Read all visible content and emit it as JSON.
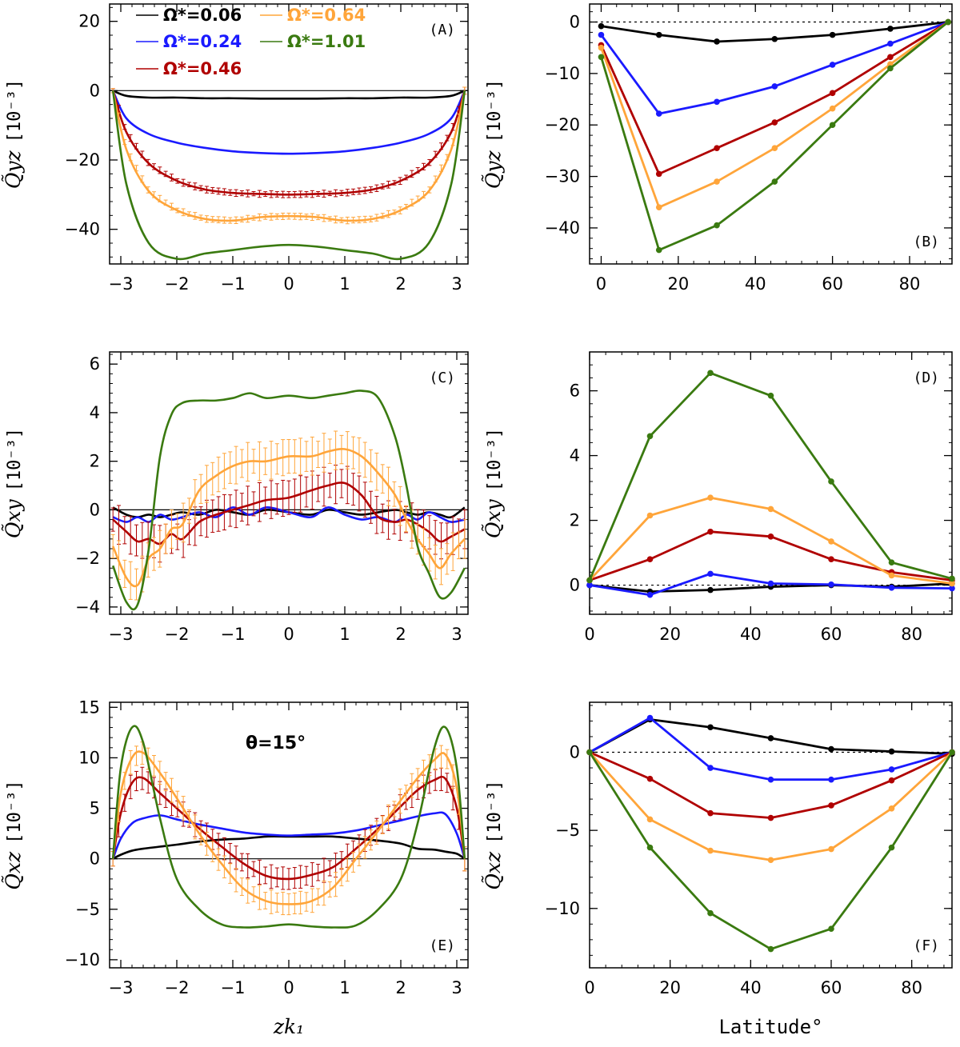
{
  "figure": {
    "legend": [
      {
        "name": "Ω*=0.06",
        "color": "#000000"
      },
      {
        "name": "Ω*=0.24",
        "color": "#1a1aff"
      },
      {
        "name": "Ω*=0.46",
        "color": "#b00000"
      },
      {
        "name": "Ω*=0.64",
        "color": "#ffa53a"
      },
      {
        "name": "Ω*=1.01",
        "color": "#3a7a10"
      }
    ],
    "ytitle_unit": "[10⁻³]",
    "annotation_theta": "θ=15°"
  },
  "chart_data": [
    {
      "panel": "A",
      "label": "(A)",
      "type": "line",
      "ylabel": "Q̃yz",
      "xlabel": "",
      "xlim": [
        -3.2,
        3.2
      ],
      "ylim": [
        -50,
        25
      ],
      "xticks": [
        -3,
        -2,
        -1,
        0,
        1,
        2,
        3
      ],
      "yticks": [
        -40,
        -20,
        0,
        20
      ],
      "zero_line": "solid",
      "x": [
        -3.14,
        -2.9,
        -2.5,
        -2.0,
        -1.5,
        -1.0,
        -0.5,
        0.0,
        0.5,
        1.0,
        1.5,
        2.0,
        2.5,
        2.9,
        3.14
      ],
      "series": [
        {
          "name": "Ω*=0.06",
          "values": [
            0,
            -1.5,
            -2,
            -2,
            -2.2,
            -2.2,
            -2.3,
            -2.3,
            -2.3,
            -2.2,
            -2.2,
            -2,
            -2,
            -1.5,
            0
          ]
        },
        {
          "name": "Ω*=0.24",
          "values": [
            0,
            -8,
            -12.5,
            -15,
            -16.5,
            -17.5,
            -18,
            -18.2,
            -18,
            -17.5,
            -16.5,
            -15,
            -12.5,
            -8,
            0
          ]
        },
        {
          "name": "Ω*=0.46",
          "values": [
            0,
            -12,
            -21,
            -26,
            -28.5,
            -29.5,
            -29.8,
            -30,
            -29.8,
            -29.5,
            -28.5,
            -26,
            -21,
            -12,
            0
          ]
        },
        {
          "name": "Ω*=0.64",
          "values": [
            0,
            -17,
            -29,
            -34.5,
            -37,
            -37.5,
            -36.5,
            -36.2,
            -36.5,
            -37.5,
            -37,
            -34.5,
            -29,
            -17,
            0
          ]
        },
        {
          "name": "Ω*=1.01",
          "values": [
            0,
            -27,
            -44,
            -48.5,
            -47,
            -46,
            -45,
            -44.5,
            -45,
            -46,
            -47,
            -48.5,
            -44,
            -27,
            0
          ]
        }
      ]
    },
    {
      "panel": "B",
      "label": "(B)",
      "type": "line",
      "ylabel": "Q̃yz",
      "xlabel": "",
      "xlim": [
        -3,
        91
      ],
      "ylim": [
        -47,
        3.5
      ],
      "xticks": [
        0,
        20,
        40,
        60,
        80
      ],
      "yticks": [
        -40,
        -30,
        -20,
        -10,
        0
      ],
      "zero_line": "dotted",
      "x": [
        0,
        15,
        30,
        45,
        60,
        75,
        90
      ],
      "series": [
        {
          "name": "Ω*=0.06",
          "values": [
            -0.8,
            -2.5,
            -3.8,
            -3.3,
            -2.5,
            -1.3,
            0
          ]
        },
        {
          "name": "Ω*=0.24",
          "values": [
            -2.5,
            -17.8,
            -15.5,
            -12.5,
            -8.3,
            -4.2,
            0
          ]
        },
        {
          "name": "Ω*=0.46",
          "values": [
            -4.5,
            -29.5,
            -24.5,
            -19.5,
            -13.8,
            -6.8,
            0
          ]
        },
        {
          "name": "Ω*=0.64",
          "values": [
            -5,
            -36,
            -31,
            -24.5,
            -16.8,
            -8.2,
            0
          ]
        },
        {
          "name": "Ω*=1.01",
          "values": [
            -6.8,
            -44.3,
            -39.5,
            -31,
            -20,
            -9,
            0
          ]
        }
      ]
    },
    {
      "panel": "C",
      "label": "(C)",
      "type": "line",
      "ylabel": "Q̃xy",
      "xlabel": "",
      "xlim": [
        -3.2,
        3.2
      ],
      "ylim": [
        -4.3,
        6.5
      ],
      "xticks": [
        -3,
        -2,
        -1,
        0,
        1,
        2,
        3
      ],
      "yticks": [
        -4,
        -2,
        0,
        2,
        4,
        6
      ],
      "zero_line": "solid",
      "x": [
        -3.14,
        -2.9,
        -2.7,
        -2.5,
        -2.3,
        -2.1,
        -1.9,
        -1.6,
        -1.3,
        -1.0,
        -0.7,
        -0.4,
        0.0,
        0.4,
        0.7,
        1.0,
        1.3,
        1.6,
        1.9,
        2.1,
        2.3,
        2.5,
        2.7,
        2.9,
        3.14
      ],
      "series": [
        {
          "name": "Ω*=0.06",
          "values": [
            0.1,
            -0.2,
            -0.3,
            -0.2,
            -0.3,
            -0.2,
            -0.1,
            -0.2,
            0.0,
            -0.1,
            -0.2,
            0.0,
            -0.1,
            -0.2,
            0.0,
            -0.1,
            -0.2,
            -0.1,
            0.0,
            -0.1,
            -0.2,
            -0.1,
            -0.2,
            -0.3,
            0.1
          ]
        },
        {
          "name": "Ω*=0.24",
          "values": [
            -0.3,
            -0.5,
            -0.3,
            -0.5,
            -0.2,
            -0.4,
            -0.3,
            -0.1,
            -0.3,
            0.1,
            -0.2,
            0.1,
            -0.1,
            -0.3,
            0.1,
            -0.2,
            -0.4,
            -0.3,
            -0.5,
            -0.2,
            -0.4,
            -0.1,
            -0.3,
            -0.5,
            -0.4
          ]
        },
        {
          "name": "Ω*=0.46",
          "values": [
            -0.4,
            -0.9,
            -1.3,
            -1.2,
            -1.4,
            -1.0,
            -1.2,
            -0.5,
            -0.2,
            0.0,
            0.2,
            0.4,
            0.5,
            0.8,
            1.0,
            1.1,
            0.6,
            -0.3,
            -0.5,
            -0.4,
            -0.6,
            -0.9,
            -1.3,
            -1.1,
            -0.8
          ]
        },
        {
          "name": "Ω*=0.64",
          "values": [
            -1.5,
            -2.8,
            -3.1,
            -2.0,
            -1.6,
            -0.8,
            -0.6,
            0.8,
            1.4,
            1.8,
            2.0,
            2.0,
            2.2,
            2.2,
            2.4,
            2.5,
            2.2,
            1.5,
            0.6,
            -0.4,
            -1.2,
            -1.8,
            -2.4,
            -1.8,
            -1.2
          ]
        },
        {
          "name": "Ω*=1.01",
          "values": [
            -2.3,
            -3.8,
            -3.9,
            -1.6,
            2.2,
            3.9,
            4.4,
            4.5,
            4.5,
            4.6,
            4.8,
            4.6,
            4.7,
            4.6,
            4.7,
            4.8,
            4.9,
            4.6,
            3.0,
            1.0,
            -1.5,
            -2.6,
            -3.6,
            -3.4,
            -2.4
          ]
        }
      ]
    },
    {
      "panel": "D",
      "label": "(D)",
      "type": "line",
      "ylabel": "Q̃xy",
      "xlabel": "",
      "xlim": [
        0,
        90
      ],
      "ylim": [
        -0.9,
        7.2
      ],
      "xticks": [
        0,
        20,
        40,
        60,
        80
      ],
      "yticks": [
        0,
        2,
        4,
        6
      ],
      "zero_line": "dotted",
      "x": [
        0,
        15,
        30,
        45,
        60,
        75,
        90
      ],
      "series": [
        {
          "name": "Ω*=0.06",
          "values": [
            0,
            -0.2,
            -0.15,
            -0.05,
            0.0,
            -0.05,
            0.05
          ]
        },
        {
          "name": "Ω*=0.24",
          "values": [
            0,
            -0.3,
            0.35,
            0.05,
            0.02,
            -0.08,
            -0.1
          ]
        },
        {
          "name": "Ω*=0.46",
          "values": [
            0.15,
            0.8,
            1.65,
            1.5,
            0.8,
            0.4,
            0.15
          ]
        },
        {
          "name": "Ω*=0.64",
          "values": [
            0.15,
            2.15,
            2.7,
            2.35,
            1.35,
            0.3,
            0.05
          ]
        },
        {
          "name": "Ω*=1.01",
          "values": [
            0.15,
            4.6,
            6.55,
            5.85,
            3.2,
            0.7,
            0.2
          ]
        }
      ]
    },
    {
      "panel": "E",
      "label": "(E)",
      "type": "line",
      "ylabel": "Q̃xz",
      "xlabel": "zk₁",
      "xlim": [
        -3.2,
        3.2
      ],
      "ylim": [
        -10.8,
        15.5
      ],
      "xticks": [
        -3,
        -2,
        -1,
        0,
        1,
        2,
        3
      ],
      "yticks": [
        -10,
        -5,
        0,
        5,
        10,
        15
      ],
      "zero_line": "solid",
      "x": [
        -3.14,
        -3.0,
        -2.8,
        -2.6,
        -2.3,
        -2.0,
        -1.6,
        -1.2,
        -0.8,
        -0.4,
        0.0,
        0.4,
        0.8,
        1.2,
        1.6,
        2.0,
        2.3,
        2.6,
        2.8,
        3.0,
        3.14
      ],
      "series": [
        {
          "name": "Ω*=0.06",
          "values": [
            0,
            0.4,
            0.8,
            1.0,
            1.2,
            1.4,
            1.7,
            1.9,
            2.0,
            2.2,
            2.2,
            2.2,
            2.2,
            2.0,
            1.8,
            1.5,
            1.0,
            0.9,
            0.7,
            0.5,
            0
          ]
        },
        {
          "name": "Ω*=0.24",
          "values": [
            0,
            2.0,
            3.5,
            4.0,
            4.3,
            3.9,
            3.4,
            3.0,
            2.6,
            2.4,
            2.3,
            2.4,
            2.5,
            2.8,
            3.3,
            3.8,
            4.2,
            4.5,
            4.4,
            2.5,
            0
          ]
        },
        {
          "name": "Ω*=0.46",
          "values": [
            0,
            4.5,
            7.5,
            8.0,
            6.5,
            5.0,
            3.0,
            1.2,
            -0.5,
            -1.7,
            -2.0,
            -1.6,
            -0.8,
            1.0,
            3.0,
            5.2,
            6.8,
            7.8,
            7.9,
            5.0,
            0
          ]
        },
        {
          "name": "Ω*=0.64",
          "values": [
            0,
            6.5,
            10.0,
            10.5,
            8.5,
            6.0,
            2.5,
            -0.5,
            -3.0,
            -4.2,
            -4.5,
            -4.2,
            -2.8,
            0.0,
            2.8,
            5.8,
            8.0,
            9.8,
            10.3,
            7.0,
            0
          ]
        },
        {
          "name": "Ω*=1.01",
          "values": [
            0,
            9.0,
            13.0,
            11.5,
            4.0,
            -2.0,
            -5.0,
            -6.5,
            -6.8,
            -6.7,
            -6.5,
            -6.7,
            -6.8,
            -6.6,
            -5.0,
            -2.0,
            3.5,
            11.0,
            13.0,
            9.0,
            0
          ]
        }
      ]
    },
    {
      "panel": "F",
      "label": "(F)",
      "type": "line",
      "ylabel": "Q̃xz",
      "xlabel": "Latitude°",
      "xlim": [
        0,
        90
      ],
      "ylim": [
        -13.8,
        3.2
      ],
      "xticks": [
        0,
        20,
        40,
        60,
        80
      ],
      "yticks": [
        -10,
        -5,
        0
      ],
      "zero_line": "dotted",
      "x": [
        0,
        15,
        30,
        45,
        60,
        75,
        90
      ],
      "series": [
        {
          "name": "Ω*=0.06",
          "values": [
            0,
            2.1,
            1.6,
            0.9,
            0.2,
            0.05,
            -0.1
          ]
        },
        {
          "name": "Ω*=0.24",
          "values": [
            0,
            2.2,
            -1.0,
            -1.75,
            -1.75,
            -1.1,
            0
          ]
        },
        {
          "name": "Ω*=0.46",
          "values": [
            0,
            -1.7,
            -3.9,
            -4.2,
            -3.4,
            -1.8,
            0
          ]
        },
        {
          "name": "Ω*=0.64",
          "values": [
            0,
            -4.3,
            -6.3,
            -6.9,
            -6.2,
            -3.6,
            0
          ]
        },
        {
          "name": "Ω*=1.01",
          "values": [
            0,
            -6.1,
            -10.3,
            -12.6,
            -11.3,
            -6.1,
            0
          ]
        }
      ]
    }
  ]
}
